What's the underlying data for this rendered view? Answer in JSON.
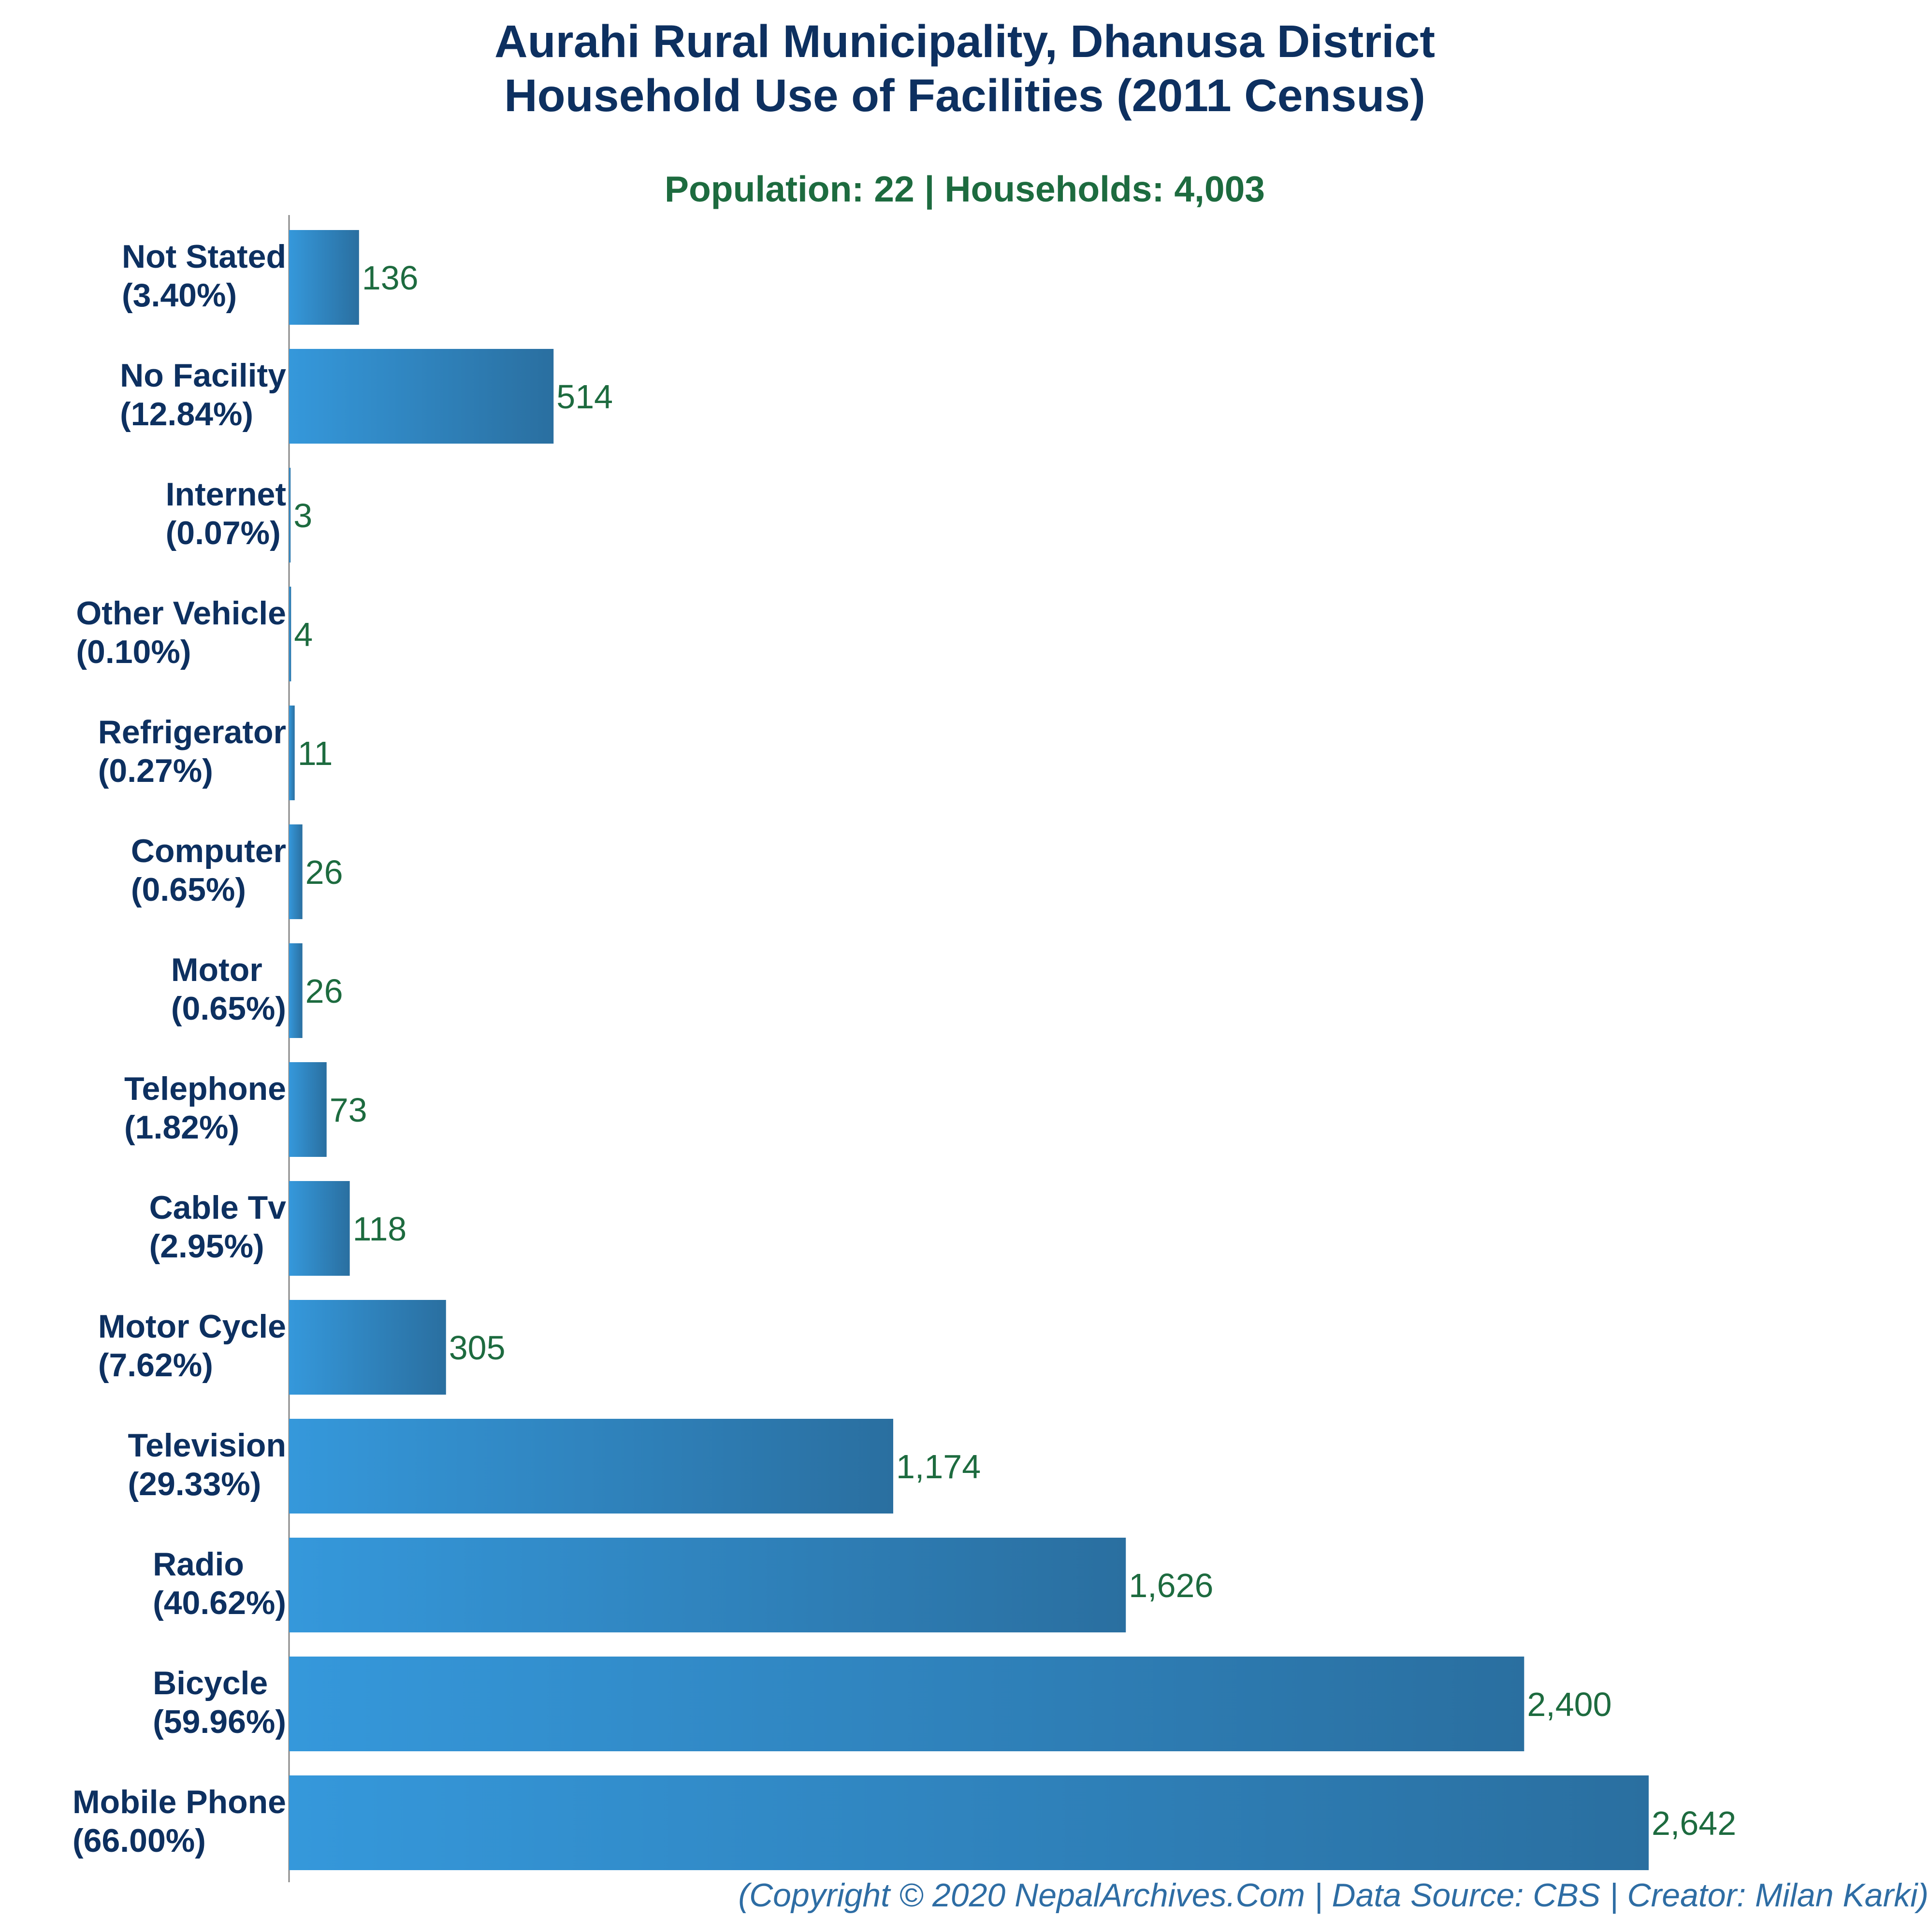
{
  "chart_data": {
    "type": "bar",
    "orientation": "horizontal",
    "title_line1": "Aurahi Rural Municipality, Dhanusa District",
    "title_line2": "Household Use of Facilities (2011 Census)",
    "subtitle": "Population: 22 | Households: 4,003",
    "footer": "(Copyright © 2020 NepalArchives.Com | Data Source: CBS | Creator: Milan Karki)",
    "categories": [
      "Not Stated",
      "No Facility",
      "Internet",
      "Other Vehicle",
      "Refrigerator",
      "Computer",
      "Motor",
      "Telephone",
      "Cable Tv",
      "Motor Cycle",
      "Television",
      "Radio",
      "Bicycle",
      "Mobile Phone"
    ],
    "percent_labels": [
      "(3.40%)",
      "(12.84%)",
      "(0.07%)",
      "(0.10%)",
      "(0.27%)",
      "(0.65%)",
      "(0.65%)",
      "(1.82%)",
      "(2.95%)",
      "(7.62%)",
      "(29.33%)",
      "(40.62%)",
      "(59.96%)",
      "(66.00%)"
    ],
    "values": [
      136,
      514,
      3,
      4,
      11,
      26,
      26,
      73,
      118,
      305,
      1174,
      1626,
      2400,
      2642
    ],
    "value_labels": [
      "136",
      "514",
      "3",
      "4",
      "11",
      "26",
      "26",
      "73",
      "118",
      "305",
      "1,174",
      "1,626",
      "2,400",
      "2,642"
    ],
    "xlim": [
      0,
      2642
    ],
    "grid": false,
    "colors": {
      "title": "#0d3060",
      "subtitle": "#1d6b3f",
      "category_label": "#0d3060",
      "value_label": "#1d6b3f",
      "bar_start": "#3598db",
      "bar_end": "#2a6fa0",
      "axis": "#888888",
      "footer": "#2e6da4"
    }
  }
}
